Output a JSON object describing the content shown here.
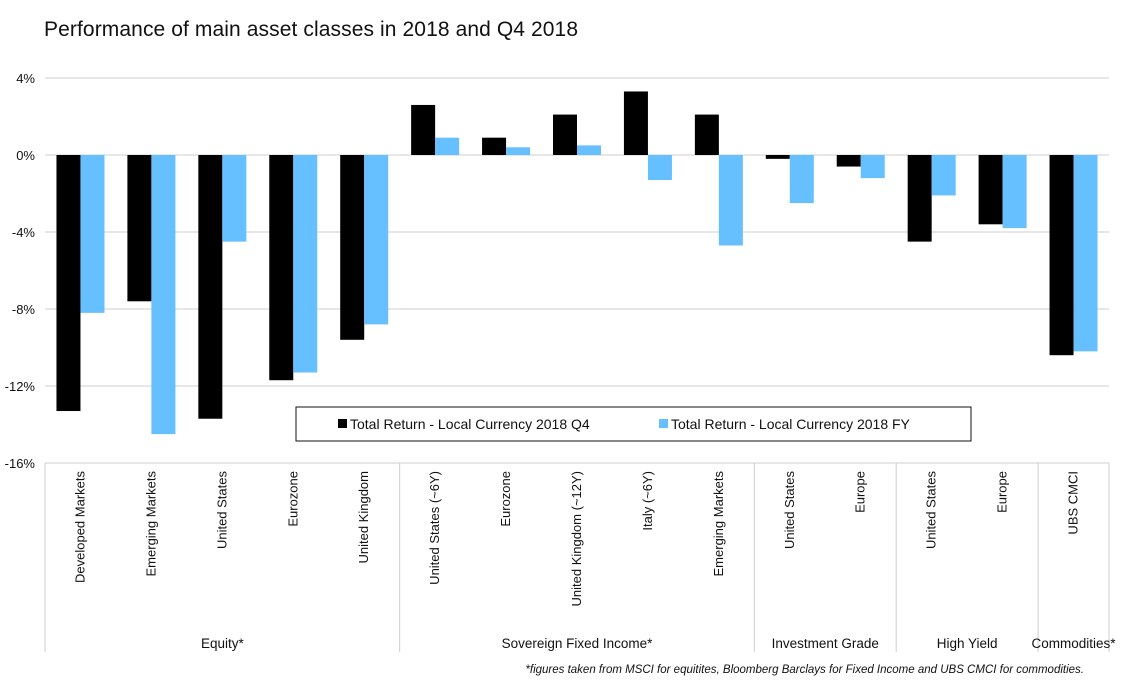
{
  "chart_data": {
    "type": "bar",
    "title": "Performance of main asset classes in 2018 and Q4 2018",
    "ylim": [
      -16,
      4
    ],
    "yticks": [
      4,
      0,
      -4,
      -8,
      -12,
      -16
    ],
    "ytick_labels": [
      "4%",
      "0%",
      "-4%",
      "-8%",
      "-12%",
      "-16%"
    ],
    "categories": [
      "Developed Markets",
      "Emerging Markets",
      "United States",
      "Eurozone",
      "United Kingdom",
      "United States (~6Y)",
      "Eurozone",
      "United Kingdom (~12Y)",
      "Italy (~6Y)",
      "Emerging Markets",
      "United States",
      "Europe",
      "United States",
      "Europe",
      "UBS CMCI"
    ],
    "groups": [
      {
        "label": "Equity*",
        "count": 5
      },
      {
        "label": "Sovereign Fixed Income*",
        "count": 5
      },
      {
        "label": "Investment Grade",
        "count": 2
      },
      {
        "label": "High Yield",
        "count": 2
      },
      {
        "label": "Commodities*",
        "count": 1
      }
    ],
    "series": [
      {
        "name": "Total Return - Local Currency 2018 Q4",
        "color": "#000000",
        "values": [
          -13.3,
          -7.6,
          -13.7,
          -11.7,
          -9.6,
          2.6,
          0.9,
          2.1,
          3.3,
          2.1,
          -0.2,
          -0.6,
          -4.5,
          -3.6,
          -10.4
        ]
      },
      {
        "name": "Total Return - Local Currency 2018 FY",
        "color": "#66bfff",
        "values": [
          -8.2,
          -14.5,
          -4.5,
          -11.3,
          -8.8,
          0.9,
          0.4,
          0.5,
          -1.3,
          -4.7,
          -2.5,
          -1.2,
          -2.1,
          -3.8,
          -10.2
        ]
      }
    ],
    "grid": true,
    "legend_position": "bottom-center inside plot"
  },
  "footnote": "*figures taken from MSCI for equitites, Bloomberg Barclays  for Fixed Income and UBS CMCI for commodities."
}
